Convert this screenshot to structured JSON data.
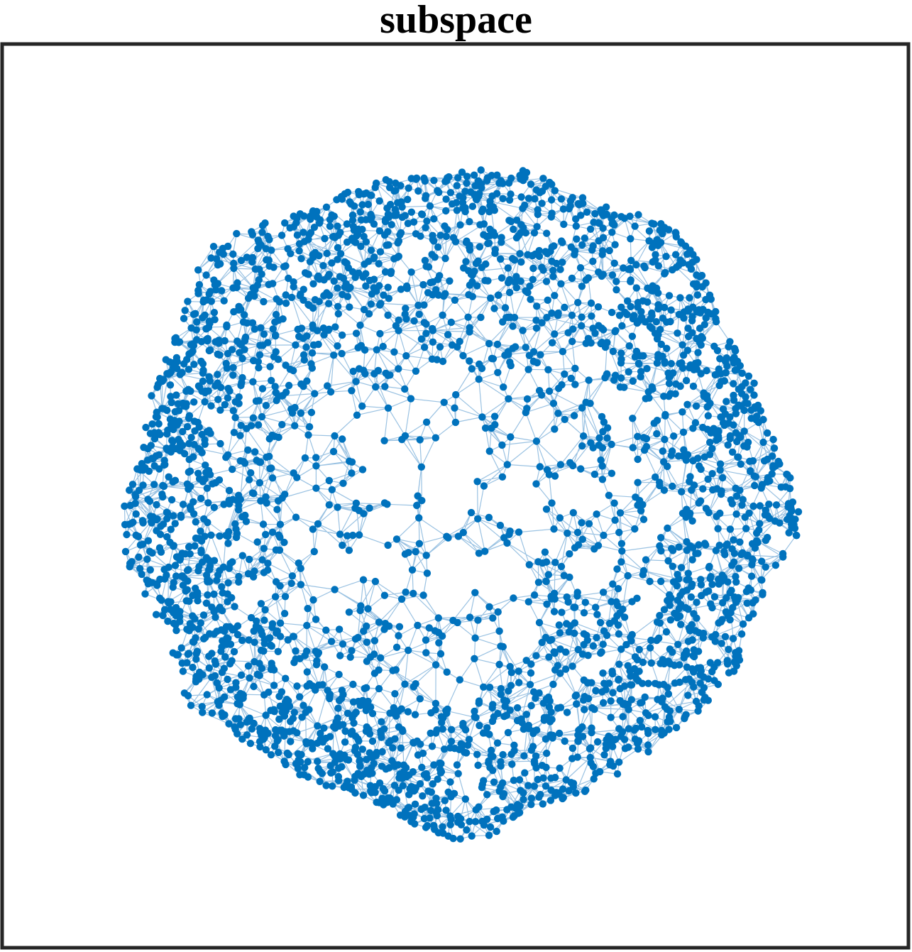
{
  "figure": {
    "title": "subspace",
    "colors": {
      "node": "#0072BD",
      "edge": "#6FA8D6",
      "frame": "#262626",
      "background": "#ffffff"
    },
    "axes": {
      "ticks_visible": false,
      "grid": false
    }
  },
  "chart_data": {
    "type": "scatter",
    "subtype": "network-graph",
    "title": "subspace",
    "xlabel": "",
    "ylabel": "",
    "legend": "none",
    "grid": false,
    "xlim": [
      -1,
      1
    ],
    "ylim": [
      -1,
      1
    ],
    "nodes": {
      "count_estimate": 4000,
      "shape": "disk with denser outer ring and sparse center"
    },
    "series": [
      {
        "values": []
      }
    ]
  }
}
